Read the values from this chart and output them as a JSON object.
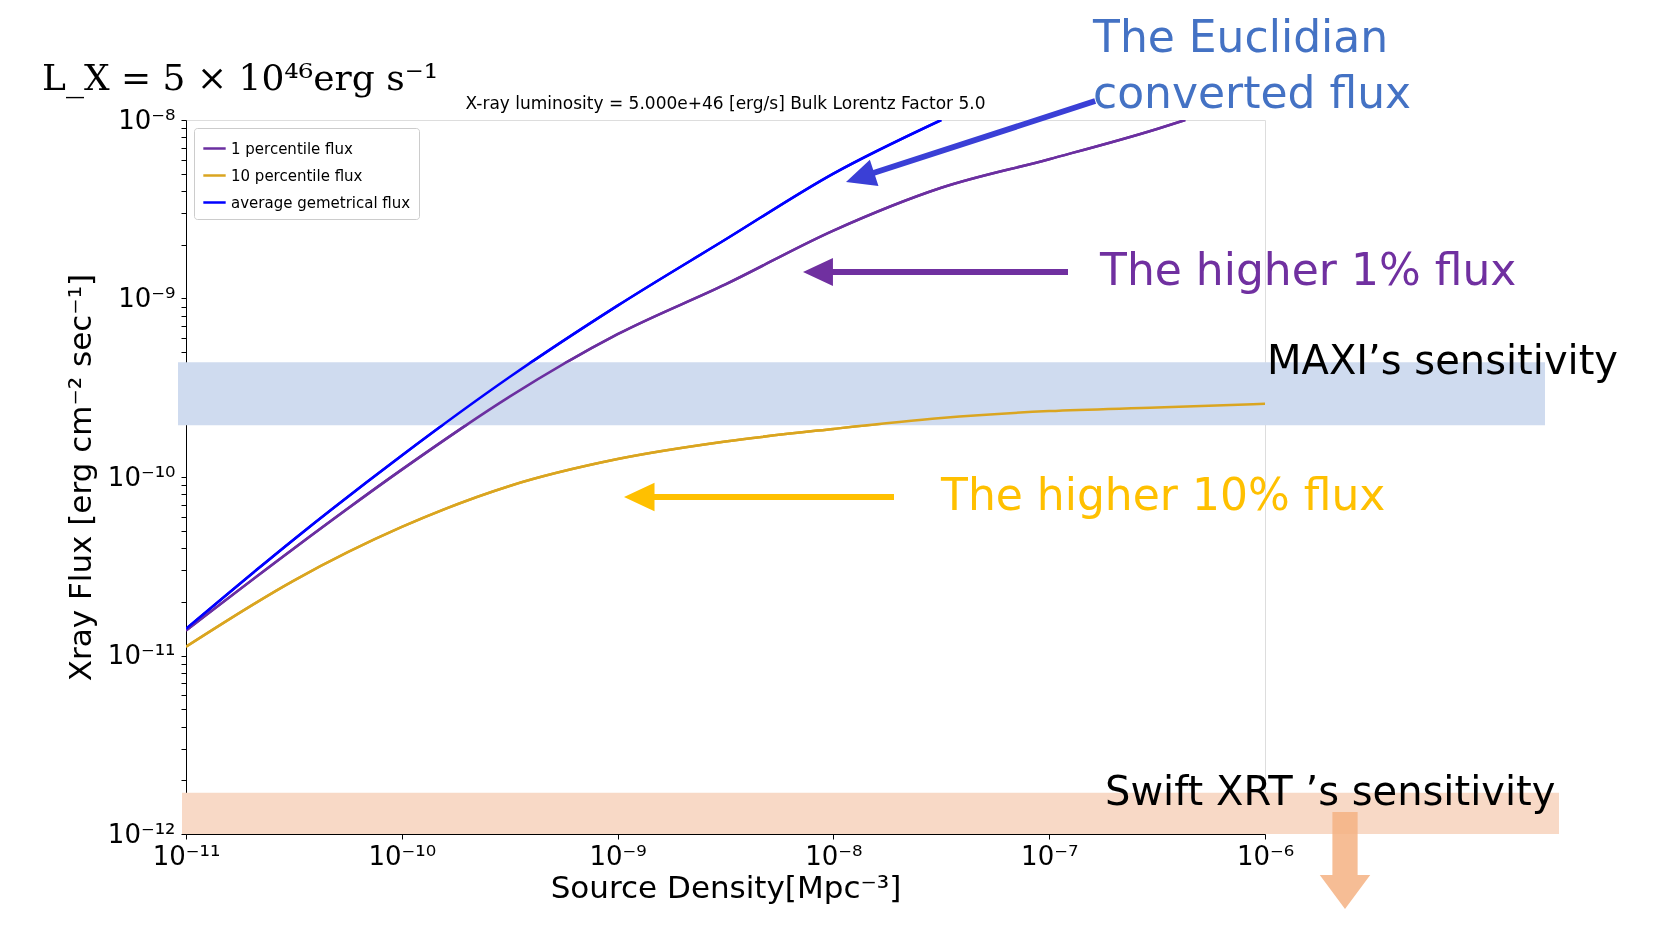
{
  "chart_data": {
    "type": "line",
    "title": "X-ray luminosity = 5.000e+46 [erg/s] Bulk Lorentz Factor 5.0",
    "xlabel": "Source Density[Mpc⁻³]",
    "ylabel": "Xray Flux [erg cm⁻² sec⁻¹]",
    "log": "xy",
    "grid": false,
    "legend": "top left",
    "marker": "none",
    "line_style": "solid",
    "xlim": [
      1e-11,
      1e-06
    ],
    "ylim": [
      1e-12,
      1e-08
    ],
    "xticks": [
      {
        "value": 1e-11,
        "label": "10⁻¹¹"
      },
      {
        "value": 1e-10,
        "label": "10⁻¹⁰"
      },
      {
        "value": 1e-09,
        "label": "10⁻⁹"
      },
      {
        "value": 1e-08,
        "label": "10⁻⁸"
      },
      {
        "value": 1e-07,
        "label": "10⁻⁷"
      },
      {
        "value": 1e-06,
        "label": "10⁻⁶"
      }
    ],
    "yticks": [
      {
        "value": 1e-12,
        "label": "10⁻¹²"
      },
      {
        "value": 2e-12,
        "label": null
      },
      {
        "value": 3e-12,
        "label": null
      },
      {
        "value": 4e-12,
        "label": null
      },
      {
        "value": 5e-12,
        "label": null
      },
      {
        "value": 6e-12,
        "label": null
      },
      {
        "value": 7e-12,
        "label": null
      },
      {
        "value": 8e-12,
        "label": null
      },
      {
        "value": 9e-12,
        "label": null
      },
      {
        "value": 1e-11,
        "label": "10⁻¹¹"
      },
      {
        "value": 2e-11,
        "label": null
      },
      {
        "value": 3e-11,
        "label": null
      },
      {
        "value": 4e-11,
        "label": null
      },
      {
        "value": 5e-11,
        "label": null
      },
      {
        "value": 6e-11,
        "label": null
      },
      {
        "value": 7e-11,
        "label": null
      },
      {
        "value": 8e-11,
        "label": null
      },
      {
        "value": 9e-11,
        "label": null
      },
      {
        "value": 1e-10,
        "label": "10⁻¹⁰"
      },
      {
        "value": 2e-10,
        "label": null
      },
      {
        "value": 3e-10,
        "label": null
      },
      {
        "value": 4e-10,
        "label": null
      },
      {
        "value": 5e-10,
        "label": null
      },
      {
        "value": 6e-10,
        "label": null
      },
      {
        "value": 7e-10,
        "label": null
      },
      {
        "value": 8e-10,
        "label": null
      },
      {
        "value": 9e-10,
        "label": null
      },
      {
        "value": 1e-09,
        "label": "10⁻⁹"
      },
      {
        "value": 2e-09,
        "label": null
      },
      {
        "value": 3e-09,
        "label": null
      },
      {
        "value": 4e-09,
        "label": null
      },
      {
        "value": 5e-09,
        "label": null
      },
      {
        "value": 6e-09,
        "label": null
      },
      {
        "value": 7e-09,
        "label": null
      },
      {
        "value": 8e-09,
        "label": null
      },
      {
        "value": 9e-09,
        "label": null
      },
      {
        "value": 1e-08,
        "label": "10⁻⁸"
      }
    ],
    "series": [
      {
        "name": "1 percentile flux",
        "color": "#6b2fa0",
        "x": [
          1e-11,
          3.16e-11,
          1e-10,
          3.16e-10,
          1e-09,
          3.16e-09,
          1e-08,
          3.16e-08,
          1e-07,
          3.16e-07,
          4.27e-07
        ],
        "values": [
          1.38e-11,
          3.98e-11,
          1.1e-10,
          2.82e-10,
          6.31e-10,
          1.2e-09,
          2.4e-09,
          4.17e-09,
          6.03e-09,
          8.91e-09,
          1e-08
        ]
      },
      {
        "name": "10 percentile flux",
        "color": "#daa520",
        "x": [
          1e-11,
          3.16e-11,
          1e-10,
          3.16e-10,
          1e-09,
          3.16e-09,
          1e-08,
          3.16e-08,
          1e-07,
          3.16e-07,
          1e-06
        ],
        "values": [
          1.12e-11,
          2.63e-11,
          5.25e-11,
          8.91e-11,
          1.26e-10,
          1.58e-10,
          1.86e-10,
          2.14e-10,
          2.34e-10,
          2.45e-10,
          2.57e-10
        ]
      },
      {
        "name": "average gemetrical flux",
        "color": "#0000ff",
        "x": [
          1e-11,
          3.16e-11,
          1e-10,
          3.16e-10,
          1e-09,
          3.16e-09,
          1e-08,
          3.16e-08
        ],
        "values": [
          1.41e-11,
          4.47e-11,
          1.32e-10,
          3.63e-10,
          9.12e-10,
          2.14e-09,
          5.01e-09,
          1e-08
        ]
      }
    ],
    "bands": [
      {
        "axis": "y",
        "from": 1.95e-10,
        "to": 4.4e-10,
        "label": "MAXI’s sensitivity",
        "color": "#cfdbef"
      },
      {
        "axis": "y",
        "from": 1e-12,
        "to": 1.7e-12,
        "label": "Swift XRT ’s sensitivity",
        "color": "#f8d9c6"
      }
    ],
    "annotations": [
      "The Euclidian\nconverted flux",
      "The higher 1% flux",
      "The higher 10% flux",
      "L_X = 5 × 10⁴⁶erg s⁻¹"
    ]
  }
}
